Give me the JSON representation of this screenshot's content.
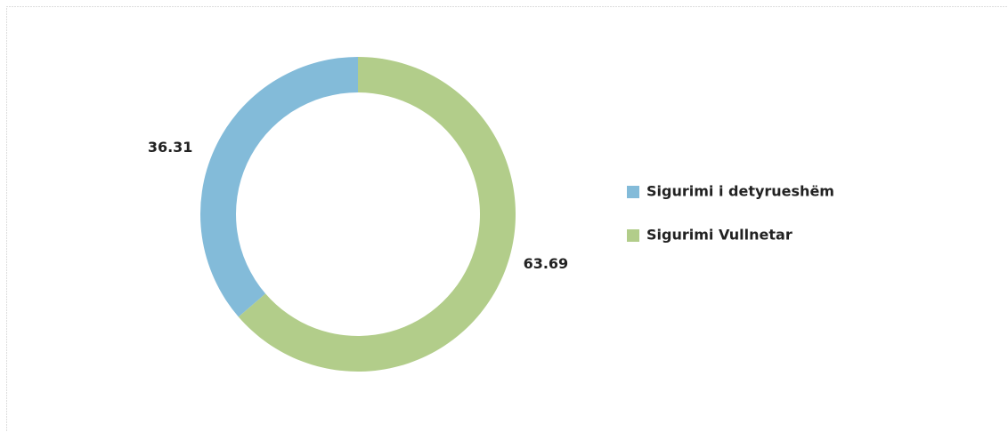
{
  "chart_data": {
    "type": "donut",
    "categories": [
      "Sigurimi i detyrueshëm",
      "Sigurimi Vullnetar"
    ],
    "values": [
      36.31,
      63.69
    ],
    "colors": [
      "#83bbd9",
      "#b2cd8a"
    ],
    "legend": "right"
  }
}
